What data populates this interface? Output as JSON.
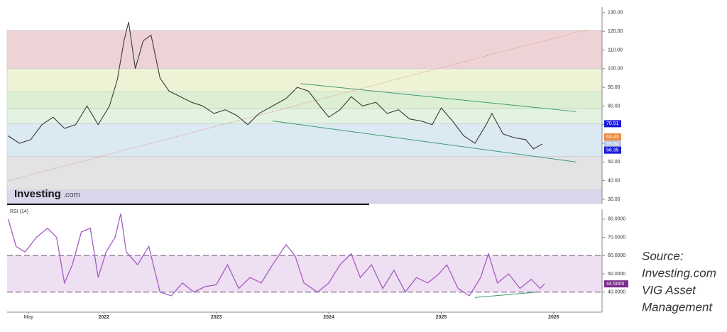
{
  "chart_data": [
    {
      "type": "line",
      "color": "#3a3a3a",
      "x": [
        2021.15,
        2021.25,
        2021.35,
        2021.45,
        2021.55,
        2021.65,
        2021.75,
        2021.85,
        2021.95,
        2022.05,
        2022.12,
        2022.18,
        2022.22,
        2022.28,
        2022.35,
        2022.42,
        2022.5,
        2022.58,
        2022.68,
        2022.78,
        2022.88,
        2022.98,
        2023.08,
        2023.18,
        2023.28,
        2023.38,
        2023.5,
        2023.62,
        2023.72,
        2023.82,
        2023.92,
        2024.0,
        2024.1,
        2024.2,
        2024.3,
        2024.42,
        2024.52,
        2024.62,
        2024.72,
        2024.82,
        2024.92,
        2025.0,
        2025.1,
        2025.2,
        2025.3,
        2025.4,
        2025.45,
        2025.55,
        2025.65,
        2025.75,
        2025.82,
        2025.9
      ],
      "values": [
        64,
        60,
        62,
        70,
        74,
        68,
        70,
        80,
        70,
        80,
        94,
        115,
        125,
        100,
        115,
        118,
        95,
        88,
        85,
        82,
        80,
        76,
        78,
        75,
        70,
        76,
        80,
        84,
        90,
        88,
        80,
        74,
        78,
        85,
        80,
        82,
        76,
        78,
        73,
        72,
        70,
        79,
        72,
        64,
        60,
        70,
        76,
        65,
        63,
        62,
        57,
        59.64
      ],
      "xlim": [
        2021.14,
        2026.43
      ],
      "ylim": [
        27.7,
        133
      ],
      "yticks": [
        {
          "value": 30,
          "label": "30.00"
        },
        {
          "value": 40,
          "label": "40.00"
        },
        {
          "value": 50,
          "label": "50.00"
        },
        {
          "value": 60,
          "label": "60.00"
        },
        {
          "value": 70,
          "label": "70.00"
        },
        {
          "value": 80,
          "label": "80.00"
        },
        {
          "value": 90,
          "label": "90.00"
        },
        {
          "value": 100,
          "label": "100.00"
        },
        {
          "value": 110,
          "label": "110.00"
        },
        {
          "value": 120,
          "label": "120.00"
        },
        {
          "value": 130,
          "label": "130.00"
        }
      ],
      "bands": [
        {
          "from": 100,
          "to": 120.6,
          "color": "#edd3d6"
        },
        {
          "from": 87.5,
          "to": 100,
          "color": "#eef3d6"
        },
        {
          "from": 78.6,
          "to": 87.5,
          "color": "#dcefd2"
        },
        {
          "from": 70.5,
          "to": 78.6,
          "color": "#e2f3e1"
        },
        {
          "from": 53,
          "to": 70.5,
          "color": "#dbe9f3"
        },
        {
          "from": 35,
          "to": 53,
          "color": "#e3e3e6"
        },
        {
          "from": 27.7,
          "to": 35,
          "color": "#d9d7ec"
        }
      ],
      "trendlines": [
        {
          "x": [
            2021.15,
            2026.3
          ],
          "y": [
            40,
            121
          ],
          "color": "#e0a090",
          "dash": true
        },
        {
          "x": [
            2023.75,
            2026.2
          ],
          "y": [
            92,
            77
          ],
          "color": "#3f9a70",
          "dash": false
        },
        {
          "x": [
            2023.5,
            2026.2
          ],
          "y": [
            72,
            50
          ],
          "color": "#3f9a70",
          "dash": false
        }
      ],
      "price_labels": [
        {
          "value": 70.51,
          "color": "#1a1adb"
        },
        {
          "value": 63.43,
          "color": "#f08a3c"
        },
        {
          "value": 59.64,
          "color": "#b9c6dd"
        },
        {
          "value": 56.35,
          "color": "#1a1adb"
        }
      ]
    },
    {
      "type": "line",
      "title": "RSI (14)",
      "color": "#a45cc2",
      "x": [
        2021.15,
        2021.22,
        2021.3,
        2021.4,
        2021.5,
        2021.58,
        2021.65,
        2021.72,
        2021.8,
        2021.88,
        2021.95,
        2022.02,
        2022.1,
        2022.15,
        2022.2,
        2022.3,
        2022.4,
        2022.5,
        2022.6,
        2022.7,
        2022.8,
        2022.9,
        2023.0,
        2023.1,
        2023.2,
        2023.3,
        2023.4,
        2023.5,
        2023.62,
        2023.7,
        2023.78,
        2023.9,
        2024.0,
        2024.1,
        2024.2,
        2024.28,
        2024.38,
        2024.48,
        2024.58,
        2024.68,
        2024.78,
        2024.88,
        2024.98,
        2025.05,
        2025.15,
        2025.25,
        2025.35,
        2025.42,
        2025.5,
        2025.6,
        2025.7,
        2025.8,
        2025.88,
        2025.92
      ],
      "values": [
        80,
        65,
        62,
        70,
        75,
        70,
        45,
        55,
        73,
        75,
        48,
        62,
        70,
        83,
        62,
        55,
        65,
        40,
        38,
        45,
        40,
        43,
        44,
        55,
        42,
        48,
        45,
        55,
        66,
        60,
        45,
        40,
        45,
        55,
        61,
        48,
        55,
        42,
        52,
        40,
        48,
        45,
        50,
        55,
        42,
        38,
        48,
        61,
        45,
        50,
        42,
        47,
        42,
        44.5005
      ],
      "xlim": [
        2021.14,
        2026.43
      ],
      "ylim": [
        29,
        85.4
      ],
      "yticks": [
        {
          "value": 40,
          "label": "40.0000"
        },
        {
          "value": 50,
          "label": "50.0000"
        },
        {
          "value": 60,
          "label": "60.0000"
        },
        {
          "value": 70,
          "label": "70.0000"
        },
        {
          "value": 80,
          "label": "80.0000"
        }
      ],
      "xticks": [
        {
          "value": 2021.33,
          "label": "May"
        },
        2022,
        2023,
        2024,
        2025,
        2026
      ],
      "band": [
        40,
        60
      ],
      "band_color": "#efdff3",
      "levels": [
        60,
        40
      ],
      "trendlines": [
        {
          "x": [
            2025.3,
            2025.85
          ],
          "y": [
            37,
            40
          ],
          "color": "#3f9a70",
          "dash": false
        }
      ],
      "price_labels": [
        {
          "value": 44.5005,
          "color": "#7b2d8e"
        }
      ]
    }
  ],
  "watermark": {
    "brand": "Investing",
    "suffix": ".com"
  },
  "source": [
    "Source:",
    "Investing.com",
    "VIG Asset",
    "Management"
  ]
}
